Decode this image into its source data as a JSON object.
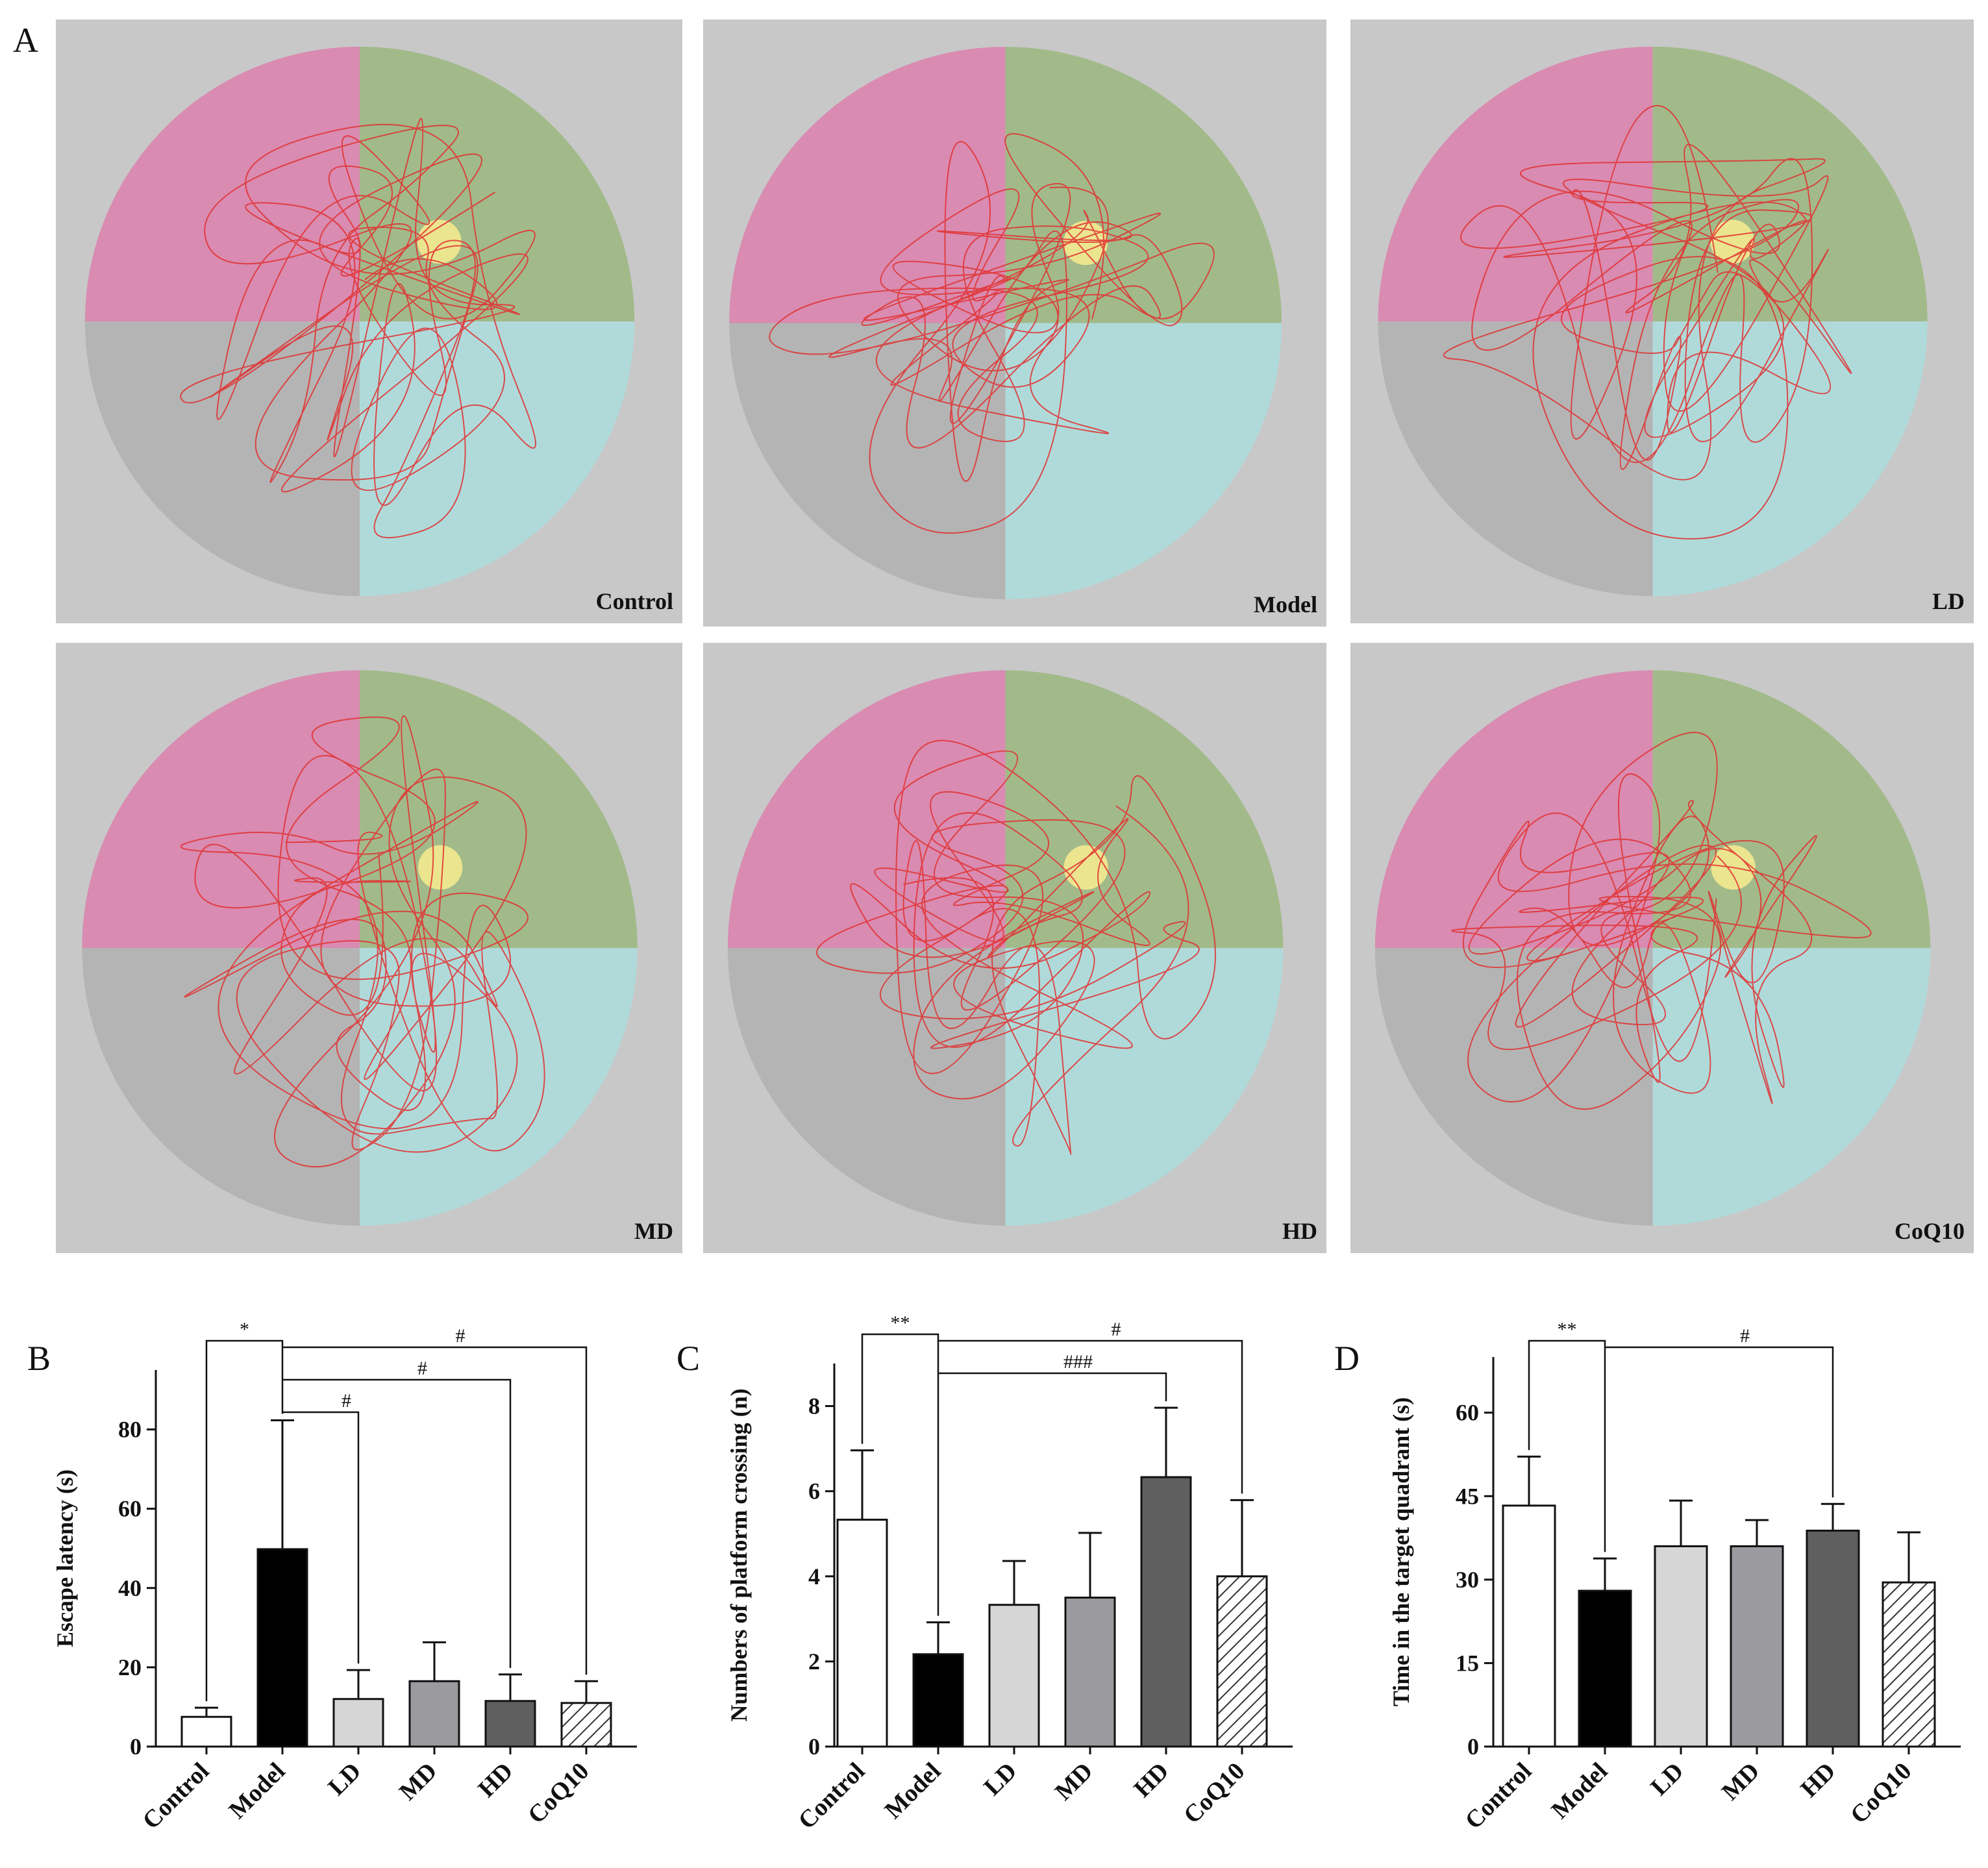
{
  "panel_a": {
    "letter": "A",
    "maps": [
      {
        "label": "Control"
      },
      {
        "label": "Model"
      },
      {
        "label": "LD"
      },
      {
        "label": "MD"
      },
      {
        "label": "HD"
      },
      {
        "label": "CoQ10"
      }
    ],
    "colors": {
      "background": "#c8c8c8",
      "quadrant_nw": "#d98bb1",
      "quadrant_ne": "#a2ba8a",
      "quadrant_sw": "#b4b4b4",
      "quadrant_se": "#b0dada",
      "platform": "#ece58f",
      "track": "#e03030"
    }
  },
  "chart_data": [
    {
      "type": "bar",
      "panel": "B",
      "categories": [
        "Control",
        "Model",
        "LD",
        "MD",
        "HD",
        "CoQ10"
      ],
      "values": [
        7.5,
        49.8,
        12.0,
        16.5,
        11.5,
        11.0
      ],
      "errors": [
        2.3,
        32.5,
        7.3,
        9.8,
        6.7,
        5.5
      ],
      "ylabel": "Escape latency (s)",
      "ylim": [
        0,
        95
      ],
      "yticks": [
        "0",
        "20",
        "40",
        "60",
        "80"
      ],
      "ytick_values": [
        0,
        20,
        40,
        60,
        80
      ],
      "comparisons": [
        {
          "from": "Control",
          "to": "Model",
          "label": "*"
        },
        {
          "from": "Model",
          "to": "LD",
          "label": "#"
        },
        {
          "from": "Model",
          "to": "HD",
          "label": "#"
        },
        {
          "from": "Model",
          "to": "CoQ10",
          "label": "#"
        }
      ]
    },
    {
      "type": "bar",
      "panel": "C",
      "categories": [
        "Control",
        "Model",
        "LD",
        "MD",
        "HD",
        "CoQ10"
      ],
      "values": [
        5.33,
        2.17,
        3.33,
        3.5,
        6.33,
        4.0
      ],
      "errors": [
        1.63,
        0.75,
        1.03,
        1.52,
        1.63,
        1.79
      ],
      "ylabel": "Numbers of platform crossing (n)",
      "ylim": [
        0,
        9
      ],
      "yticks": [
        "0",
        "2",
        "4",
        "6",
        "8"
      ],
      "ytick_values": [
        0,
        2,
        4,
        6,
        8
      ],
      "comparisons": [
        {
          "from": "Control",
          "to": "Model",
          "label": "**"
        },
        {
          "from": "Model",
          "to": "HD",
          "label": "###"
        },
        {
          "from": "Model",
          "to": "CoQ10",
          "label": "#"
        }
      ]
    },
    {
      "type": "bar",
      "panel": "D",
      "categories": [
        "Control",
        "Model",
        "LD",
        "MD",
        "HD",
        "CoQ10"
      ],
      "values": [
        43.3,
        28.0,
        36.0,
        36.0,
        38.8,
        29.5
      ],
      "errors": [
        8.8,
        5.8,
        8.2,
        4.7,
        4.8,
        9.0
      ],
      "ylabel": "Time in the target quadrant (s)",
      "ylim": [
        0,
        70
      ],
      "yticks": [
        "0",
        "15",
        "30",
        "45",
        "60"
      ],
      "ytick_values": [
        0,
        15,
        30,
        45,
        60
      ],
      "comparisons": [
        {
          "from": "Control",
          "to": "Model",
          "label": "**"
        },
        {
          "from": "Model",
          "to": "HD",
          "label": "#"
        }
      ]
    }
  ]
}
